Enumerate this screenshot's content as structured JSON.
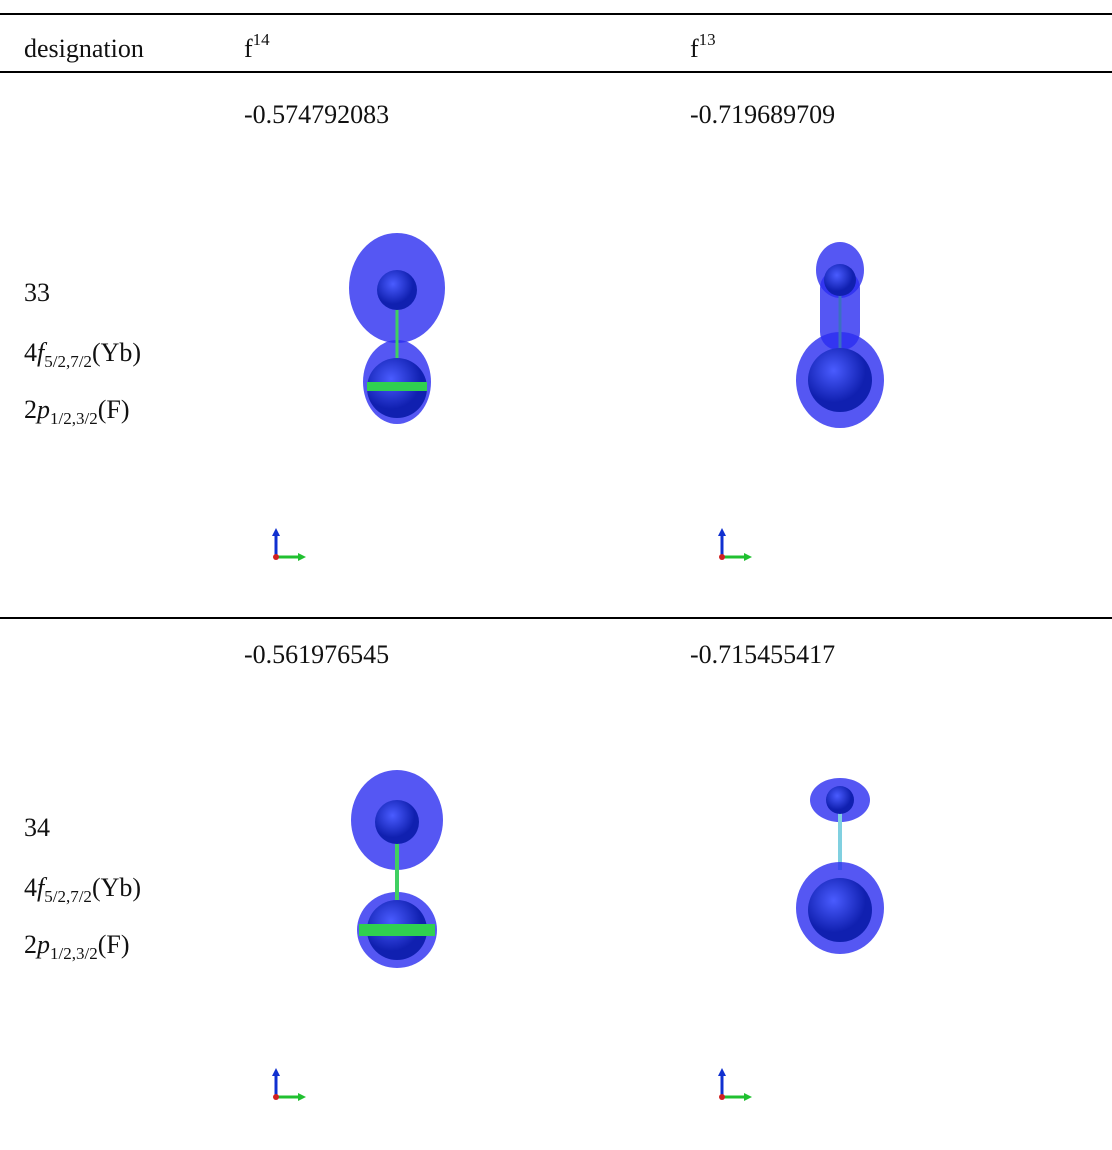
{
  "table": {
    "header": [
      {
        "base": "designation"
      },
      {
        "base": "f",
        "sup": "14"
      },
      {
        "base": "f",
        "sup": "13"
      }
    ],
    "rows": [
      {
        "id": "33",
        "orbitals": [
          {
            "prefix": "4",
            "letter": "f",
            "subscript": "5/2,7/2",
            "suffix": "(Yb)"
          },
          {
            "prefix": "2",
            "letter": "p",
            "subscript": "1/2,3/2",
            "suffix": "(F)"
          }
        ],
        "energies": [
          "-0.574792083",
          "-0.719689709"
        ]
      },
      {
        "id": "34",
        "orbitals": [
          {
            "prefix": "4",
            "letter": "f",
            "subscript": "5/2,7/2",
            "suffix": "(Yb)"
          },
          {
            "prefix": "2",
            "letter": "p",
            "subscript": "1/2,3/2",
            "suffix": "(F)"
          }
        ],
        "energies": [
          "-0.561976545",
          "-0.715455417"
        ]
      }
    ]
  }
}
